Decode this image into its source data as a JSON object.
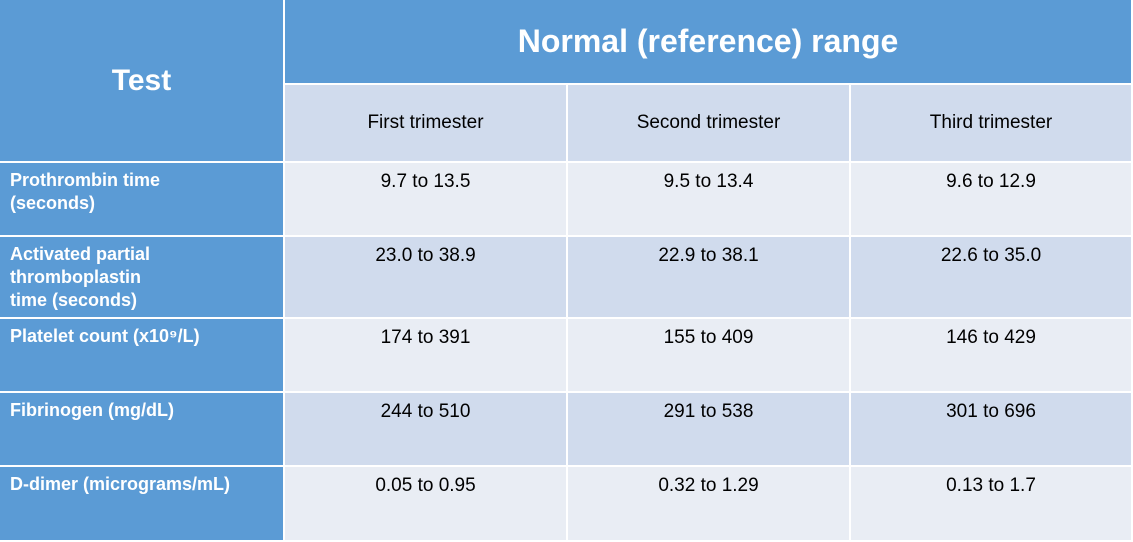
{
  "table": {
    "header": {
      "test": "Test",
      "range": "Normal (reference) range",
      "columns": [
        "First trimester",
        "Second trimester",
        "Third trimester"
      ]
    },
    "rows": [
      {
        "label": [
          "Prothrombin time",
          "(seconds)"
        ],
        "values": [
          "9.7 to 13.5",
          "9.5 to 13.4",
          "9.6 to 12.9"
        ]
      },
      {
        "label": [
          "Activated partial",
          "thromboplastin",
          "time (seconds)"
        ],
        "values": [
          "23.0 to 38.9",
          "22.9 to 38.1",
          "22.6 to 35.0"
        ]
      },
      {
        "label": [
          "Platelet count (x10⁹/L)"
        ],
        "values": [
          "174 to 391",
          "155 to 409",
          "146 to 429"
        ]
      },
      {
        "label": [
          "Fibrinogen (mg/dL)"
        ],
        "values": [
          "244 to 510",
          "291 to 538",
          "301 to 696"
        ]
      },
      {
        "label": [
          "D-dimer (micrograms/mL)"
        ],
        "values": [
          "0.05 to 0.95",
          "0.32 to 1.29",
          "0.13 to 1.7"
        ]
      }
    ]
  }
}
